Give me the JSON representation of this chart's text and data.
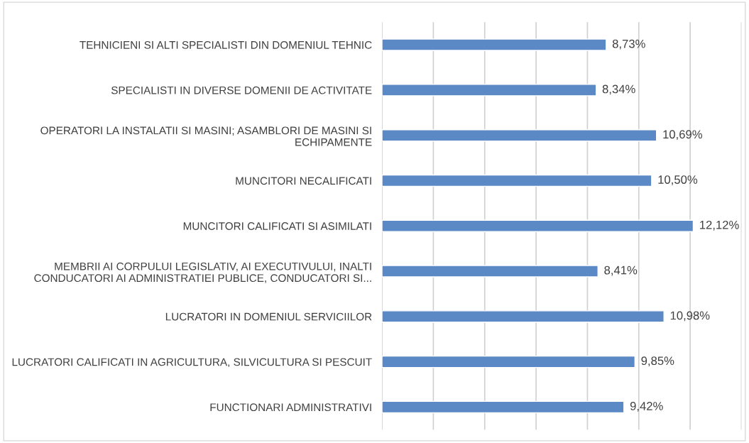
{
  "chart_data": {
    "type": "bar",
    "orientation": "horizontal",
    "categories": [
      "TEHNICIENI SI ALTI SPECIALISTI DIN DOMENIUL TEHNIC",
      "SPECIALISTI IN DIVERSE DOMENII DE ACTIVITATE",
      "OPERATORI LA INSTALATII SI MASINI; ASAMBLORI DE MASINI SI\nECHIPAMENTE",
      "MUNCITORI NECALIFICATI",
      "MUNCITORI CALIFICATI SI ASIMILATI",
      "MEMBRII AI CORPULUI LEGISLATIV, AI EXECUTIVULUI, INALTI\nCONDUCATORI AI ADMINISTRATIEI PUBLICE, CONDUCATORI SI...",
      "LUCRATORI IN DOMENIUL SERVICIILOR",
      "LUCRATORI CALIFICATI IN AGRICULTURA, SILVICULTURA SI PESCUIT",
      "FUNCTIONARI ADMINISTRATIVI"
    ],
    "values": [
      8.73,
      8.34,
      10.69,
      10.5,
      12.12,
      8.41,
      10.98,
      9.85,
      9.42
    ],
    "value_labels": [
      "8,73%",
      "8,34%",
      "10,69%",
      "10,50%",
      "12,12%",
      "8,41%",
      "10,98%",
      "9,85%",
      "9,42%"
    ],
    "color": "#5b89c6",
    "xlim": [
      0,
      14
    ],
    "xticks": [
      {
        "value": 0,
        "label": null
      },
      {
        "value": 2,
        "label": null
      },
      {
        "value": 4,
        "label": null
      },
      {
        "value": 6,
        "label": null
      },
      {
        "value": 8,
        "label": null
      },
      {
        "value": 10,
        "label": null
      },
      {
        "value": 12,
        "label": null
      },
      {
        "value": 14,
        "label": null
      }
    ],
    "tick_labels": "y",
    "grid": "x",
    "legend": false
  }
}
